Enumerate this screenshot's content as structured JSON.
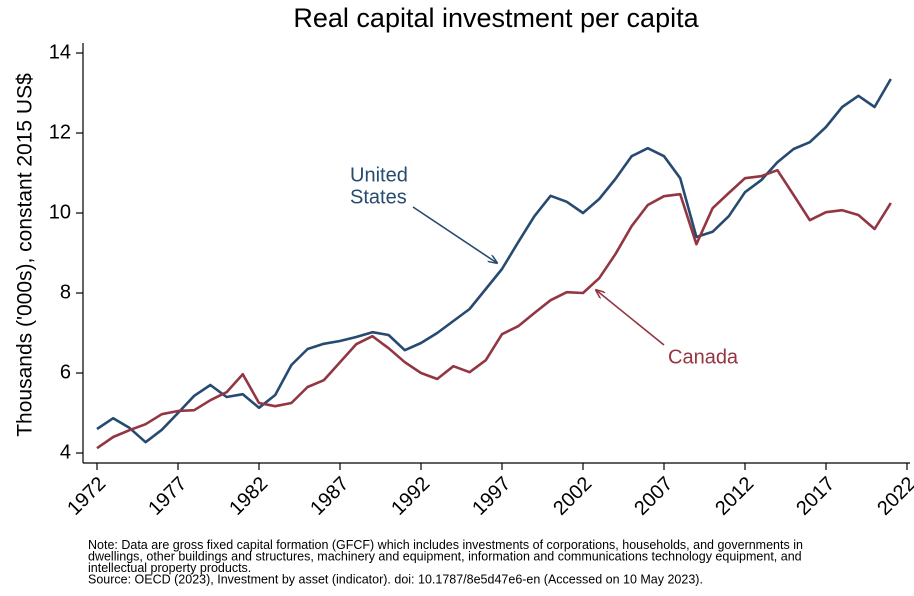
{
  "chart_data": {
    "type": "line",
    "title": "Real capital investment per capita",
    "y_label": "Thousands ('000s), constant 2015 US$",
    "x": [
      1972,
      1973,
      1974,
      1975,
      1976,
      1977,
      1978,
      1979,
      1980,
      1981,
      1982,
      1983,
      1984,
      1985,
      1986,
      1987,
      1988,
      1989,
      1990,
      1991,
      1992,
      1993,
      1994,
      1995,
      1996,
      1997,
      1998,
      1999,
      2000,
      2001,
      2002,
      2003,
      2004,
      2005,
      2006,
      2007,
      2008,
      2009,
      2010,
      2011,
      2012,
      2013,
      2014,
      2015,
      2016,
      2017,
      2018,
      2019,
      2020,
      2021
    ],
    "series": [
      {
        "name": "United States",
        "color": "#274b70",
        "values": [
          4.6,
          4.87,
          4.63,
          4.27,
          4.58,
          5.0,
          5.43,
          5.7,
          5.4,
          5.47,
          5.13,
          5.45,
          6.2,
          6.6,
          6.73,
          6.8,
          6.9,
          7.02,
          6.95,
          6.57,
          6.75,
          7.0,
          7.3,
          7.6,
          8.1,
          8.6,
          9.27,
          9.92,
          10.43,
          10.28,
          10.0,
          10.35,
          10.85,
          11.42,
          11.62,
          11.42,
          10.87,
          9.4,
          9.53,
          9.92,
          10.52,
          10.82,
          11.27,
          11.6,
          11.77,
          12.15,
          12.65,
          12.93,
          12.65,
          13.35
        ]
      },
      {
        "name": "Canada",
        "color": "#933643",
        "values": [
          4.12,
          4.4,
          4.57,
          4.72,
          4.97,
          5.05,
          5.07,
          5.32,
          5.52,
          5.97,
          5.25,
          5.17,
          5.25,
          5.65,
          5.82,
          6.27,
          6.72,
          6.92,
          6.62,
          6.27,
          6.0,
          5.85,
          6.17,
          6.02,
          6.32,
          6.97,
          7.17,
          7.5,
          7.82,
          8.02,
          8.0,
          8.37,
          8.97,
          9.67,
          10.2,
          10.42,
          10.47,
          9.22,
          10.12,
          10.5,
          10.87,
          10.92,
          11.07,
          10.45,
          9.82,
          10.02,
          10.07,
          9.95,
          9.6,
          10.25
        ]
      }
    ],
    "annotations": [
      [
        "United",
        "States"
      ],
      [
        "Canada"
      ]
    ],
    "xlim": [
      1972,
      2022
    ],
    "xticks": [
      1972,
      1977,
      1982,
      1987,
      1992,
      1997,
      2002,
      2007,
      2012,
      2017,
      2022
    ],
    "ylim": [
      4,
      14
    ],
    "yticks": [
      4,
      6,
      8,
      10,
      12,
      14
    ],
    "notes": [
      "Note: Data are gross fixed capital formation (GFCF) which includes investments of corporations, households, and governments in",
      "dwellings, other buildings and structures, machinery and equipment, information and communications technology equipment, and",
      "intellectual property products.",
      "Source: OECD (2023), Investment by asset (indicator). doi: 10.1787/8e5d47e6-en (Accessed on 10 May 2023)."
    ]
  }
}
